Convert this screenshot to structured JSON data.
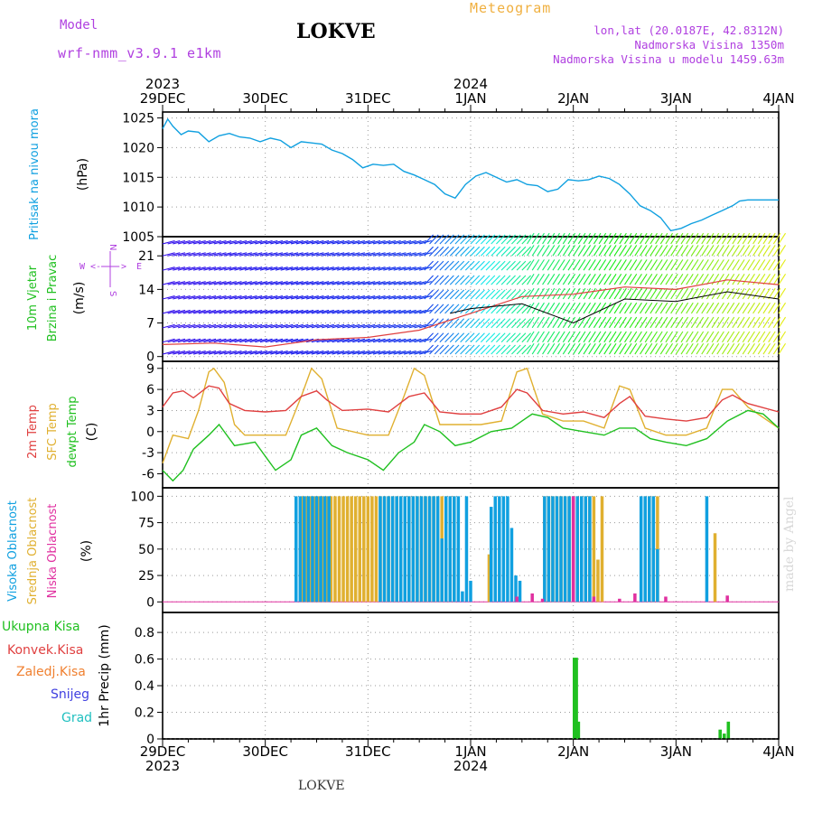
{
  "header": {
    "model_label": "Model",
    "model_name": "wrf-nmm_v3.9.1  e1km",
    "station": "LOKVE",
    "meteogram": "Meteogram",
    "lonlat": "lon,lat (20.0187E, 42.8312N)",
    "elevation": "Nadmorska Visina 1350m",
    "model_elevation": "Nadmorska Visina u modelu 1459.63m"
  },
  "footer_station": "LOKVE",
  "watermark": "made by Angel",
  "time_axis": {
    "ticks": [
      "29DEC",
      "30DEC",
      "31DEC",
      "1JAN",
      "2JAN",
      "3JAN",
      "4JAN"
    ],
    "years_top": [
      "2023",
      "2024"
    ],
    "years_bottom": [
      "2023",
      "2024"
    ]
  },
  "chart_data": [
    {
      "type": "line",
      "title": "",
      "ylabel_lines": [
        "Pritisak na nivou mora"
      ],
      "unit": "(hPa)",
      "ylim": [
        1005,
        1026
      ],
      "yticks": [
        "1025",
        "1020",
        "1015",
        "1010",
        "1005"
      ],
      "grid": true,
      "colors": {
        "pressure": "#10a0e0"
      },
      "series": [
        {
          "x_day": [
            0,
            0.05,
            0.1,
            0.18,
            0.25,
            0.35,
            0.45,
            0.55,
            0.65,
            0.75,
            0.85,
            0.95,
            1.05,
            1.15,
            1.25,
            1.35,
            1.45,
            1.55,
            1.65,
            1.75,
            1.85,
            1.95,
            2.05,
            2.15,
            2.25,
            2.35,
            2.45,
            2.55,
            2.65,
            2.75,
            2.85,
            2.95,
            3.05,
            3.15,
            3.25,
            3.35,
            3.45,
            3.55,
            3.65,
            3.75,
            3.85,
            3.95,
            4.05,
            4.15,
            4.25,
            4.35,
            4.45,
            4.55,
            4.65,
            4.75,
            4.85,
            4.95,
            5.05,
            5.15,
            5.25,
            5.35,
            5.45,
            5.55,
            5.62,
            5.7,
            5.8,
            5.9,
            6.0
          ],
          "values": [
            1023.2,
            1024.8,
            1023.6,
            1022.2,
            1022.8,
            1022.6,
            1021.0,
            1022.0,
            1022.4,
            1021.8,
            1021.6,
            1021.0,
            1021.6,
            1021.2,
            1020.0,
            1021.0,
            1020.8,
            1020.6,
            1019.6,
            1019.0,
            1018.0,
            1016.6,
            1017.2,
            1017.0,
            1017.2,
            1016.0,
            1015.4,
            1014.6,
            1013.8,
            1012.2,
            1011.5,
            1013.8,
            1015.2,
            1015.8,
            1015.0,
            1014.2,
            1014.6,
            1013.8,
            1013.6,
            1012.6,
            1013.0,
            1014.6,
            1014.4,
            1014.6,
            1015.2,
            1014.8,
            1013.8,
            1012.2,
            1010.2,
            1009.4,
            1008.2,
            1006.0,
            1006.4,
            1007.2,
            1007.8,
            1008.6,
            1009.4,
            1010.2,
            1011.0,
            1011.2,
            1011.2,
            1011.2,
            1011.2
          ]
        }
      ]
    },
    {
      "type": "line",
      "title": "",
      "ylabel_lines": [
        "10m Vjetar",
        "Brzina i Pravac"
      ],
      "unit": "(m/s)",
      "ylim": [
        -1,
        25
      ],
      "yticks": [
        "21",
        "14",
        "7",
        "0"
      ],
      "grid": true,
      "compass": {
        "n": "N",
        "e": "E",
        "w": "W",
        "s": "S"
      },
      "colors": {
        "speed": "#e04040",
        "gust": "#000000"
      },
      "series": [
        {
          "name": "speed",
          "x_day": [
            0,
            0.5,
            1.0,
            1.5,
            2.0,
            2.5,
            3.0,
            3.5,
            4.0,
            4.5,
            5.0,
            5.5,
            6.0
          ],
          "values": [
            2.5,
            2.8,
            2.0,
            3.5,
            4.0,
            5.5,
            9.0,
            12.5,
            13.0,
            14.5,
            14.0,
            16.0,
            15.0
          ]
        },
        {
          "name": "gust",
          "x_day": [
            2.8,
            3.0,
            3.5,
            4.0,
            4.5,
            5.0,
            5.5,
            6.0
          ],
          "values": [
            9.0,
            10.0,
            11.0,
            7.0,
            12.0,
            11.5,
            13.5,
            12.0
          ]
        }
      ]
    },
    {
      "type": "line",
      "title": "",
      "ylabel_lines": [
        "2m Temp",
        "SFC Temp",
        "dewpt Temp"
      ],
      "unit": "(C)",
      "ylim": [
        -8,
        10
      ],
      "yticks": [
        "9",
        "6",
        "3",
        "0",
        "-3",
        "-6"
      ],
      "grid": true,
      "colors": {
        "t2m": "#e04040",
        "sfc": "#e0b030",
        "dewpt": "#20c020"
      },
      "series": [
        {
          "name": "2m Temp",
          "x_day": [
            0,
            0.1,
            0.2,
            0.3,
            0.45,
            0.55,
            0.65,
            0.8,
            1.0,
            1.2,
            1.35,
            1.5,
            1.6,
            1.75,
            2.0,
            2.2,
            2.4,
            2.55,
            2.7,
            2.9,
            3.1,
            3.3,
            3.45,
            3.55,
            3.7,
            3.9,
            4.1,
            4.3,
            4.45,
            4.55,
            4.7,
            4.9,
            5.1,
            5.3,
            5.45,
            5.55,
            5.7,
            6.0
          ],
          "values": [
            3.5,
            5.5,
            5.8,
            4.8,
            6.5,
            6.2,
            4.0,
            3.0,
            2.8,
            3.0,
            5.0,
            5.8,
            4.5,
            3.0,
            3.2,
            2.8,
            5.0,
            5.5,
            2.8,
            2.5,
            2.5,
            3.5,
            6.0,
            5.5,
            3.0,
            2.5,
            2.8,
            2.0,
            4.0,
            5.0,
            2.2,
            1.8,
            1.5,
            2.0,
            4.5,
            5.2,
            4.0,
            2.8
          ]
        },
        {
          "name": "SFC Temp",
          "x_day": [
            0,
            0.1,
            0.25,
            0.35,
            0.45,
            0.5,
            0.6,
            0.7,
            0.8,
            1.0,
            1.2,
            1.35,
            1.45,
            1.55,
            1.7,
            2.0,
            2.2,
            2.35,
            2.45,
            2.55,
            2.7,
            2.9,
            3.1,
            3.3,
            3.45,
            3.55,
            3.7,
            3.9,
            4.1,
            4.3,
            4.45,
            4.55,
            4.7,
            4.9,
            5.1,
            5.3,
            5.45,
            5.55,
            5.7,
            6.0
          ],
          "values": [
            -4.5,
            -0.5,
            -1.0,
            3.0,
            8.5,
            9.0,
            7.0,
            1.0,
            -0.5,
            -0.5,
            -0.5,
            5.0,
            9.0,
            7.5,
            0.5,
            -0.5,
            -0.5,
            5.0,
            9.0,
            8.0,
            1.0,
            1.0,
            1.0,
            1.5,
            8.5,
            9.0,
            2.5,
            1.5,
            1.5,
            0.5,
            6.5,
            6.0,
            0.5,
            -0.5,
            -0.5,
            0.5,
            6.0,
            6.0,
            3.5,
            0.5
          ]
        },
        {
          "name": "dewpt Temp",
          "x_day": [
            0,
            0.1,
            0.2,
            0.3,
            0.45,
            0.55,
            0.7,
            0.9,
            1.1,
            1.25,
            1.35,
            1.5,
            1.65,
            1.8,
            2.0,
            2.15,
            2.3,
            2.45,
            2.55,
            2.7,
            2.85,
            3.0,
            3.2,
            3.4,
            3.5,
            3.6,
            3.75,
            3.9,
            4.1,
            4.3,
            4.45,
            4.6,
            4.75,
            4.9,
            5.1,
            5.3,
            5.5,
            5.7,
            5.85,
            6.0
          ],
          "values": [
            -5.5,
            -7.0,
            -5.5,
            -2.5,
            -0.5,
            1.0,
            -2.0,
            -1.5,
            -5.5,
            -4.0,
            -0.5,
            0.5,
            -2.0,
            -3.0,
            -4.0,
            -5.5,
            -3.0,
            -1.5,
            1.0,
            0.0,
            -2.0,
            -1.5,
            0.0,
            0.5,
            1.5,
            2.5,
            2.0,
            0.5,
            0.0,
            -0.5,
            0.5,
            0.5,
            -1.0,
            -1.5,
            -2.0,
            -1.0,
            1.5,
            3.0,
            2.5,
            0.5
          ]
        }
      ]
    },
    {
      "type": "bar",
      "title": "",
      "ylabel_lines": [
        "Visoka Oblacnost",
        "Srednja Oblacnost",
        "Niska Oblacnost"
      ],
      "unit": "(%)",
      "ylim": [
        0,
        100
      ],
      "yticks": [
        "100",
        "75",
        "50",
        "25",
        "0"
      ],
      "grid": true,
      "colors": {
        "high": "#10a0e0",
        "mid": "#e0b030",
        "low": "#e030a0"
      },
      "series": [
        {
          "name": "high",
          "x_day": [
            1.3,
            1.34,
            1.38,
            1.42,
            1.46,
            1.5,
            1.54,
            1.58,
            1.62,
            2.12,
            2.16,
            2.2,
            2.24,
            2.28,
            2.32,
            2.36,
            2.4,
            2.44,
            2.48,
            2.52,
            2.56,
            2.6,
            2.64,
            2.68,
            2.72,
            2.76,
            2.8,
            2.84,
            2.88,
            2.92,
            2.96,
            3.0,
            3.2,
            3.24,
            3.28,
            3.32,
            3.36,
            3.4,
            3.44,
            3.48,
            3.72,
            3.76,
            3.8,
            3.84,
            3.88,
            3.92,
            3.96,
            4.0,
            4.04,
            4.08,
            4.12,
            4.16,
            4.66,
            4.7,
            4.74,
            4.78,
            4.82,
            5.3
          ],
          "values": [
            100,
            100,
            100,
            100,
            100,
            100,
            100,
            100,
            100,
            100,
            100,
            100,
            100,
            100,
            100,
            100,
            100,
            100,
            100,
            100,
            100,
            100,
            100,
            100,
            60,
            100,
            100,
            100,
            100,
            10,
            100,
            20,
            90,
            100,
            100,
            100,
            100,
            70,
            25,
            20,
            100,
            100,
            100,
            100,
            100,
            100,
            100,
            100,
            100,
            100,
            100,
            100,
            100,
            100,
            100,
            100,
            50,
            100
          ]
        },
        {
          "name": "mid",
          "x_day": [
            1.36,
            1.4,
            1.44,
            1.48,
            1.52,
            1.56,
            1.6,
            1.64,
            1.68,
            1.72,
            1.76,
            1.8,
            1.84,
            1.88,
            1.92,
            1.96,
            2.0,
            2.04,
            2.08,
            2.12,
            2.16,
            2.2,
            2.24,
            2.28,
            2.32,
            2.36,
            2.4,
            2.44,
            2.48,
            2.52,
            2.56,
            2.6,
            2.64,
            2.68,
            2.72,
            2.76,
            2.8,
            2.84,
            3.18,
            3.72,
            3.76,
            3.8,
            3.84,
            3.88,
            3.92,
            3.96,
            4.0,
            4.04,
            4.08,
            4.12,
            4.16,
            4.2,
            4.24,
            4.28,
            4.7,
            4.74,
            4.78,
            4.82,
            5.38
          ],
          "values": [
            100,
            100,
            100,
            100,
            100,
            100,
            100,
            100,
            100,
            100,
            100,
            100,
            100,
            100,
            100,
            100,
            100,
            100,
            100,
            100,
            100,
            100,
            100,
            100,
            100,
            100,
            100,
            100,
            100,
            100,
            100,
            100,
            100,
            100,
            100,
            100,
            100,
            100,
            45,
            100,
            100,
            100,
            100,
            100,
            100,
            100,
            100,
            100,
            100,
            100,
            100,
            100,
            40,
            100,
            100,
            100,
            100,
            100,
            65
          ]
        },
        {
          "name": "low",
          "x_day": [
            3.45,
            3.6,
            3.7,
            4.0,
            4.2,
            4.45,
            4.6,
            4.9,
            5.5
          ],
          "values": [
            5,
            8,
            3,
            100,
            5,
            3,
            8,
            5,
            6
          ]
        }
      ]
    },
    {
      "type": "bar",
      "title": "",
      "ylabel_lines": [
        "1hr Precip"
      ],
      "unit": "(mm)",
      "ylim": [
        0,
        1.0
      ],
      "yticks": [
        "0.8",
        "0.6",
        "0.4",
        "0.2",
        "0"
      ],
      "grid": true,
      "legend": [
        {
          "label": "Ukupna  Kisa",
          "color": "#20c020"
        },
        {
          "label": "Konvek.Kisa",
          "color": "#e04040"
        },
        {
          "label": "Zaledj.Kisa",
          "color": "#f08030"
        },
        {
          "label": "Snijeg",
          "color": "#4040e0"
        },
        {
          "label": "Grad",
          "color": "#20c0c0"
        }
      ],
      "series": [
        {
          "name": "Ukupna  Kisa",
          "x_day": [
            4.01,
            4.03,
            4.05,
            5.43,
            5.47,
            5.51
          ],
          "values": [
            0.61,
            0.61,
            0.13,
            0.07,
            0.04,
            0.13
          ]
        }
      ]
    }
  ]
}
